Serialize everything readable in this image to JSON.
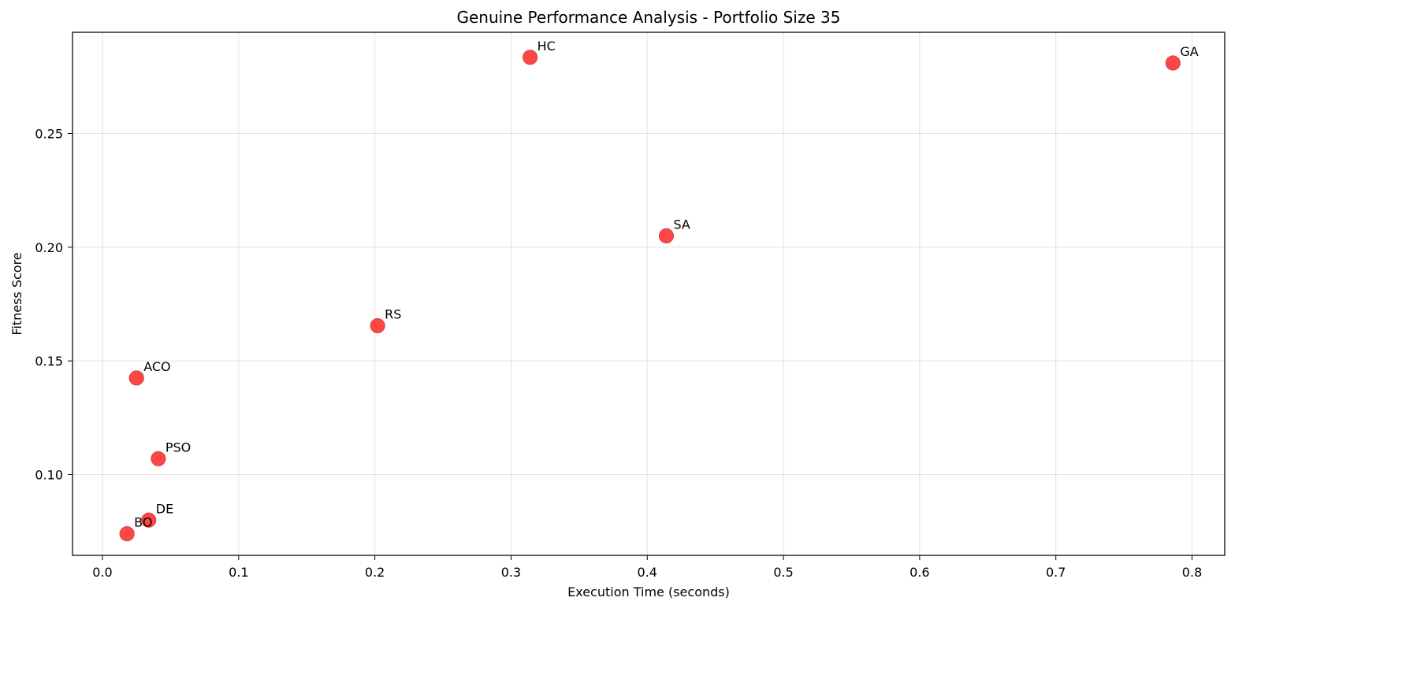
{
  "chart_data": {
    "type": "scatter",
    "title": "Genuine Performance Analysis - Portfolio Size 35",
    "xlabel": "Execution Time (seconds)",
    "ylabel": "Fitness Score",
    "xlim": [
      -0.022,
      0.824
    ],
    "ylim": [
      0.0645,
      0.2945
    ],
    "x_ticks": [
      0.0,
      0.1,
      0.2,
      0.3,
      0.4,
      0.5,
      0.6,
      0.7,
      0.8
    ],
    "y_ticks": [
      0.1,
      0.15,
      0.2,
      0.25
    ],
    "x_tick_labels": [
      "0.0",
      "0.1",
      "0.2",
      "0.3",
      "0.4",
      "0.5",
      "0.6",
      "0.7",
      "0.8"
    ],
    "y_tick_labels": [
      "0.10",
      "0.15",
      "0.20",
      "0.25"
    ],
    "grid": true,
    "marker_color": "#ff0000",
    "points": [
      {
        "label": "HC",
        "x": 0.314,
        "y": 0.2835
      },
      {
        "label": "GA",
        "x": 0.786,
        "y": 0.281
      },
      {
        "label": "SA",
        "x": 0.414,
        "y": 0.205
      },
      {
        "label": "RS",
        "x": 0.202,
        "y": 0.1655
      },
      {
        "label": "ACO",
        "x": 0.025,
        "y": 0.1425
      },
      {
        "label": "PSO",
        "x": 0.041,
        "y": 0.107
      },
      {
        "label": "DE",
        "x": 0.034,
        "y": 0.08
      },
      {
        "label": "BO",
        "x": 0.018,
        "y": 0.074
      }
    ]
  }
}
